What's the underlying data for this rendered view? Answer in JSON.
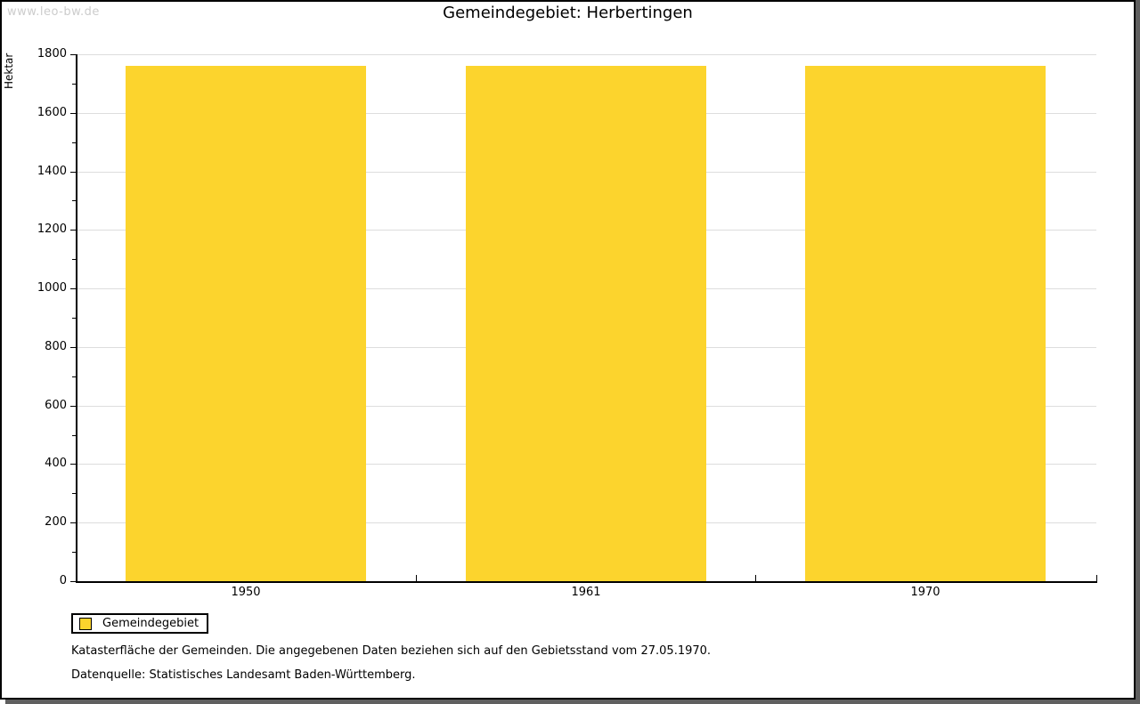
{
  "watermark": "www.leo-bw.de",
  "title": "Gemeindegebiet: Herbertingen",
  "y_axis_label": "Hektar",
  "legend": {
    "label": "Gemeindegebiet"
  },
  "footnotes": {
    "line1": "Katasterfläche der Gemeinden. Die angegebenen Daten beziehen sich auf den Gebietsstand vom 27.05.1970.",
    "line2": "Datenquelle: Statistisches Landesamt Baden-Württemberg."
  },
  "colors": {
    "bar": "#FCD42D",
    "grid": "#DDDDDD",
    "axis": "#000000",
    "watermark": "#CCCCCC",
    "frame_shadow": "#5F5F5F"
  },
  "chart_data": {
    "type": "bar",
    "categories": [
      "1950",
      "1961",
      "1970"
    ],
    "series": [
      {
        "name": "Gemeindegebiet",
        "values": [
          1760,
          1760,
          1760
        ]
      }
    ],
    "title": "Gemeindegebiet: Herbertingen",
    "xlabel": "",
    "ylabel": "Hektar",
    "ylim": [
      0,
      1800
    ],
    "ytick_major_step": 200,
    "ytick_minor_step": 100,
    "grid": "horizontal-major-only",
    "legend_position": "bottom-left",
    "annotations": [
      "Katasterfläche der Gemeinden. Die angegebenen Daten beziehen sich auf den Gebietsstand vom 27.05.1970.",
      "Datenquelle: Statistisches Landesamt Baden-Württemberg."
    ]
  }
}
